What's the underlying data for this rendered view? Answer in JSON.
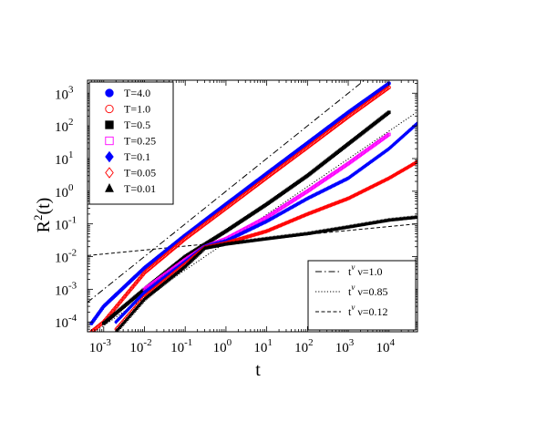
{
  "chart_data": {
    "type": "scatter",
    "xlabel": "t",
    "ylabel": "R",
    "ylabel_sup": "2",
    "ylabel_tail": "(t)",
    "xscale": "log",
    "yscale": "log",
    "xlim": [
      0.0004,
      50000
    ],
    "ylim": [
      5e-05,
      2500
    ],
    "x_ticks": [
      {
        "value": 0.001,
        "base": "10",
        "exp": "-3"
      },
      {
        "value": 0.01,
        "base": "10",
        "exp": "-2"
      },
      {
        "value": 0.1,
        "base": "10",
        "exp": "-1"
      },
      {
        "value": 1,
        "base": "10",
        "exp": "0"
      },
      {
        "value": 10,
        "base": "10",
        "exp": "1"
      },
      {
        "value": 100,
        "base": "10",
        "exp": "2"
      },
      {
        "value": 1000,
        "base": "10",
        "exp": "3"
      },
      {
        "value": 10000,
        "base": "10",
        "exp": "4"
      }
    ],
    "y_ticks": [
      {
        "value": 0.0001,
        "base": "10",
        "exp": "-4"
      },
      {
        "value": 0.001,
        "base": "10",
        "exp": "-3"
      },
      {
        "value": 0.01,
        "base": "10",
        "exp": "-2"
      },
      {
        "value": 0.1,
        "base": "10",
        "exp": "-1"
      },
      {
        "value": 1,
        "base": "10",
        "exp": "0"
      },
      {
        "value": 10,
        "base": "10",
        "exp": "1"
      },
      {
        "value": 100,
        "base": "10",
        "exp": "2"
      },
      {
        "value": 1000,
        "base": "10",
        "exp": "3"
      }
    ],
    "legend_placement": "top-left",
    "ref_legend_placement": "bottom-right",
    "series": [
      {
        "name": "T=4.0",
        "marker": "circle-filled",
        "color": "#0000ff",
        "points": [
          [
            0.0005,
            9e-05
          ],
          [
            0.001,
            0.0003
          ],
          [
            0.01,
            0.0045
          ],
          [
            0.1,
            0.045
          ],
          [
            1,
            0.4
          ],
          [
            10,
            3.5
          ],
          [
            100,
            30
          ],
          [
            1000,
            260
          ],
          [
            10000,
            2000
          ]
        ]
      },
      {
        "name": "T=1.0",
        "marker": "circle-open",
        "color": "#ff0000",
        "points": [
          [
            0.0005,
            5e-05
          ],
          [
            0.001,
            0.0001
          ],
          [
            0.01,
            0.0032
          ],
          [
            0.1,
            0.035
          ],
          [
            1,
            0.3
          ],
          [
            10,
            2.6
          ],
          [
            100,
            22
          ],
          [
            1000,
            190
          ],
          [
            10000,
            1500
          ]
        ]
      },
      {
        "name": "T=0.5",
        "marker": "square-filled",
        "color": "#000000",
        "points": [
          [
            0.001,
            9e-05
          ],
          [
            0.01,
            0.001
          ],
          [
            0.1,
            0.01
          ],
          [
            1,
            0.06
          ],
          [
            10,
            0.4
          ],
          [
            100,
            3
          ],
          [
            1000,
            28
          ],
          [
            10000,
            260
          ]
        ]
      },
      {
        "name": "T=0.25",
        "marker": "square-open",
        "color": "#ff00ff",
        "points": [
          [
            0.01,
            0.001
          ],
          [
            0.1,
            0.008
          ],
          [
            0.3,
            0.02
          ],
          [
            1,
            0.035
          ],
          [
            10,
            0.16
          ],
          [
            100,
            1
          ],
          [
            1000,
            7
          ],
          [
            10000,
            55
          ]
        ]
      },
      {
        "name": "T=0.1",
        "marker": "diamond-filled",
        "color": "#0000ff",
        "points": [
          [
            0.002,
            0.0001
          ],
          [
            0.01,
            0.0008
          ],
          [
            0.1,
            0.007
          ],
          [
            0.3,
            0.02
          ],
          [
            1,
            0.03
          ],
          [
            10,
            0.12
          ],
          [
            100,
            0.6
          ],
          [
            1000,
            2.5
          ],
          [
            10000,
            20
          ],
          [
            50000,
            120
          ]
        ]
      },
      {
        "name": "T=0.05",
        "marker": "diamond-open",
        "color": "#ff0000",
        "points": [
          [
            0.002,
            6e-05
          ],
          [
            0.01,
            0.0006
          ],
          [
            0.1,
            0.006
          ],
          [
            0.3,
            0.019
          ],
          [
            1,
            0.026
          ],
          [
            10,
            0.06
          ],
          [
            100,
            0.2
          ],
          [
            1000,
            0.6
          ],
          [
            10000,
            2.5
          ],
          [
            50000,
            8
          ]
        ]
      },
      {
        "name": "T=0.01",
        "marker": "triangle-filled",
        "color": "#000000",
        "points": [
          [
            0.002,
            5e-05
          ],
          [
            0.01,
            0.0005
          ],
          [
            0.1,
            0.005
          ],
          [
            0.3,
            0.018
          ],
          [
            1,
            0.024
          ],
          [
            10,
            0.035
          ],
          [
            100,
            0.05
          ],
          [
            1000,
            0.08
          ],
          [
            10000,
            0.13
          ],
          [
            50000,
            0.16
          ]
        ]
      }
    ],
    "reference_lines": [
      {
        "name": "t",
        "nu_label": "ν=1.0",
        "style": "dashdot",
        "coef": 1.0,
        "exp": 1.0
      },
      {
        "name": "t",
        "nu_label": "ν=0.85",
        "style": "dotted",
        "coef": 0.0275,
        "exp": 0.85
      },
      {
        "name": "t",
        "nu_label": "ν=0.12",
        "style": "dashed",
        "coef": 0.0275,
        "exp": 0.12
      }
    ],
    "ref_legend_sup": "ν"
  }
}
